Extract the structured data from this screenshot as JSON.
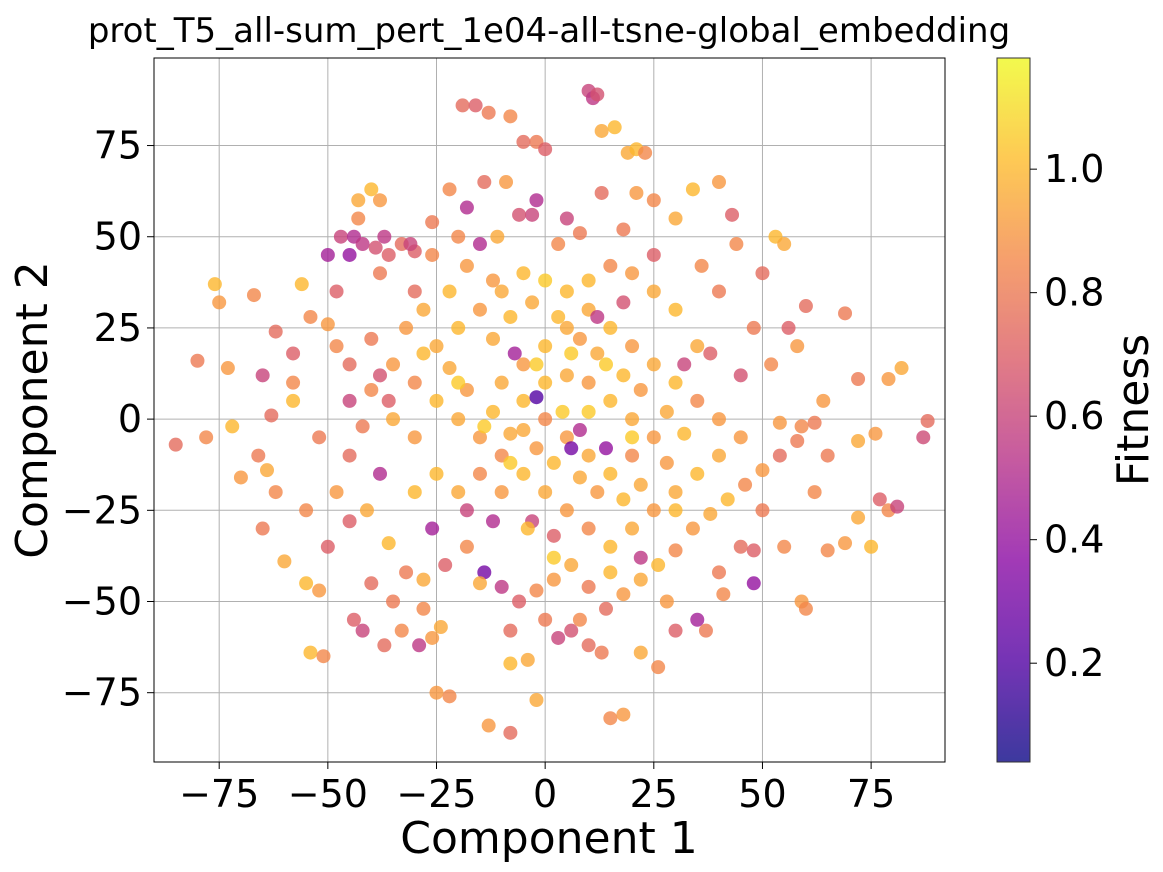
{
  "chart_data": {
    "type": "scatter",
    "title": "prot_T5_all-sum_pert_1e04-all-tsne-global_embedding",
    "xlabel": "Component 1",
    "ylabel": "Component 2",
    "xlim": [
      -90,
      92
    ],
    "ylim": [
      -94,
      99
    ],
    "xticks": [
      -75,
      -50,
      -25,
      0,
      25,
      50,
      75
    ],
    "yticks": [
      -75,
      -50,
      -25,
      0,
      25,
      50,
      75
    ],
    "xtick_labels": [
      "−75",
      "−50",
      "−25",
      "0",
      "25",
      "50",
      "75"
    ],
    "ytick_labels": [
      "−75",
      "−50",
      "−25",
      "0",
      "25",
      "50",
      "75"
    ],
    "grid": true,
    "colorbar": {
      "label": "Fitness",
      "colormap": "plasma",
      "range": [
        0.04,
        1.18
      ],
      "ticks": [
        0.2,
        0.4,
        0.6,
        0.8,
        1.0
      ],
      "tick_labels": [
        "0.2",
        "0.4",
        "0.6",
        "0.8",
        "1.0"
      ]
    },
    "points": [
      [
        88,
        -0.5,
        0.75
      ],
      [
        87,
        -5,
        0.62
      ],
      [
        54,
        -1,
        0.9
      ],
      [
        59,
        -2,
        0.85
      ],
      [
        62,
        -1,
        0.8
      ],
      [
        10,
        90,
        0.6
      ],
      [
        11,
        88,
        0.55
      ],
      [
        12,
        89,
        0.65
      ],
      [
        -19,
        86,
        0.75
      ],
      [
        -16,
        86,
        0.7
      ],
      [
        -13,
        84,
        0.8
      ],
      [
        -8,
        83,
        0.85
      ],
      [
        -2,
        76,
        0.8
      ],
      [
        -5,
        76,
        0.75
      ],
      [
        0,
        74,
        0.7
      ],
      [
        13,
        79,
        0.95
      ],
      [
        16,
        80,
        1.0
      ],
      [
        19,
        73,
        0.95
      ],
      [
        21,
        74,
        1.0
      ],
      [
        23,
        73,
        0.85
      ],
      [
        -43,
        60,
        0.95
      ],
      [
        -40,
        63,
        1.0
      ],
      [
        -38,
        60,
        0.9
      ],
      [
        -43,
        55,
        0.85
      ],
      [
        -47,
        50,
        0.6
      ],
      [
        -44,
        50,
        0.5
      ],
      [
        -42,
        48,
        0.55
      ],
      [
        -39,
        47,
        0.65
      ],
      [
        -36,
        45,
        0.7
      ],
      [
        -33,
        48,
        0.75
      ],
      [
        -45,
        45,
        0.4
      ],
      [
        -50,
        45,
        0.45
      ],
      [
        -37,
        50,
        0.55
      ],
      [
        -30,
        46,
        0.7
      ],
      [
        -26,
        45,
        0.85
      ],
      [
        -76,
        37,
        1.0
      ],
      [
        -75,
        32,
        0.9
      ],
      [
        -67,
        34,
        0.85
      ],
      [
        -62,
        24,
        0.75
      ],
      [
        -58,
        18,
        0.7
      ],
      [
        -80,
        16,
        0.8
      ],
      [
        -73,
        14,
        0.9
      ],
      [
        -65,
        12,
        0.6
      ],
      [
        -63,
        1,
        0.75
      ],
      [
        -58,
        5,
        1.0
      ],
      [
        -72,
        -2,
        1.0
      ],
      [
        -78,
        -5,
        0.85
      ],
      [
        -85,
        -7,
        0.75
      ],
      [
        -70,
        -16,
        0.9
      ],
      [
        -64,
        -14,
        0.95
      ],
      [
        -65,
        -30,
        0.8
      ],
      [
        -60,
        -39,
        0.95
      ],
      [
        -55,
        -45,
        1.0
      ],
      [
        -52,
        -47,
        0.9
      ],
      [
        -54,
        -64,
        1.0
      ],
      [
        -51,
        -65,
        0.85
      ],
      [
        -44,
        -55,
        0.7
      ],
      [
        -42,
        -58,
        0.6
      ],
      [
        -37,
        -62,
        0.75
      ],
      [
        -33,
        -58,
        0.85
      ],
      [
        -29,
        -62,
        0.55
      ],
      [
        -26,
        -60,
        0.9
      ],
      [
        -24,
        -57,
        0.95
      ],
      [
        -25,
        -75,
        0.9
      ],
      [
        -22,
        -76,
        0.85
      ],
      [
        -13,
        -84,
        0.9
      ],
      [
        -8,
        -86,
        0.75
      ],
      [
        -4,
        -66,
        0.95
      ],
      [
        -8,
        -67,
        1.0
      ],
      [
        -2,
        -77,
        0.95
      ],
      [
        3,
        -60,
        0.6
      ],
      [
        6,
        -58,
        0.65
      ],
      [
        10,
        -62,
        0.75
      ],
      [
        13,
        -64,
        0.8
      ],
      [
        15,
        -82,
        0.85
      ],
      [
        18,
        -81,
        0.9
      ],
      [
        22,
        -64,
        0.95
      ],
      [
        26,
        -68,
        0.85
      ],
      [
        30,
        -58,
        0.7
      ],
      [
        35,
        -55,
        0.45
      ],
      [
        37,
        -58,
        0.8
      ],
      [
        41,
        -48,
        0.85
      ],
      [
        48,
        -45,
        0.4
      ],
      [
        48,
        -36,
        0.7
      ],
      [
        55,
        -35,
        0.85
      ],
      [
        59,
        -50,
        0.9
      ],
      [
        60,
        -52,
        0.85
      ],
      [
        65,
        -36,
        0.85
      ],
      [
        69,
        -34,
        0.9
      ],
      [
        72,
        -27,
        0.95
      ],
      [
        75,
        -35,
        1.0
      ],
      [
        79,
        -25,
        0.85
      ],
      [
        77,
        -22,
        0.7
      ],
      [
        81,
        -24,
        0.6
      ],
      [
        72,
        -6,
        0.95
      ],
      [
        76,
        -4,
        0.9
      ],
      [
        72,
        11,
        0.8
      ],
      [
        79,
        11,
        0.9
      ],
      [
        82,
        14,
        0.95
      ],
      [
        69,
        29,
        0.8
      ],
      [
        60,
        31,
        0.75
      ],
      [
        56,
        25,
        0.7
      ],
      [
        53,
        50,
        1.0
      ],
      [
        55,
        48,
        0.95
      ],
      [
        50,
        40,
        0.75
      ],
      [
        44,
        48,
        0.85
      ],
      [
        43,
        56,
        0.7
      ],
      [
        40,
        65,
        0.9
      ],
      [
        34,
        63,
        1.0
      ],
      [
        30,
        55,
        0.95
      ],
      [
        25,
        60,
        0.85
      ],
      [
        21,
        62,
        0.9
      ],
      [
        13,
        62,
        0.75
      ],
      [
        8,
        51,
        0.8
      ],
      [
        3,
        48,
        0.85
      ],
      [
        -3,
        56,
        0.6
      ],
      [
        -2,
        60,
        0.5
      ],
      [
        -6,
        56,
        0.65
      ],
      [
        -11,
        50,
        0.95
      ],
      [
        -9,
        65,
        0.9
      ],
      [
        -14,
        65,
        0.75
      ],
      [
        -22,
        63,
        0.85
      ],
      [
        -18,
        58,
        0.5
      ],
      [
        -26,
        54,
        0.8
      ],
      [
        -31,
        48,
        0.6
      ],
      [
        -56,
        37,
        1.0
      ],
      [
        -50,
        26,
        0.9
      ],
      [
        -48,
        20,
        0.85
      ],
      [
        -45,
        15,
        0.75
      ],
      [
        -40,
        22,
        0.8
      ],
      [
        -38,
        12,
        0.65
      ],
      [
        -36,
        5,
        0.7
      ],
      [
        -42,
        -2,
        0.8
      ],
      [
        -45,
        -10,
        0.75
      ],
      [
        -48,
        -20,
        0.9
      ],
      [
        -41,
        -25,
        0.95
      ],
      [
        -36,
        -34,
        1.0
      ],
      [
        -32,
        -42,
        0.8
      ],
      [
        -28,
        -44,
        0.95
      ],
      [
        -23,
        -40,
        0.7
      ],
      [
        -18,
        -35,
        0.85
      ],
      [
        -14,
        -42,
        0.3
      ],
      [
        -10,
        -46,
        0.55
      ],
      [
        -6,
        -50,
        0.7
      ],
      [
        -2,
        -47,
        0.85
      ],
      [
        2,
        -44,
        0.9
      ],
      [
        6,
        -40,
        0.95
      ],
      [
        10,
        -46,
        0.8
      ],
      [
        14,
        -52,
        0.75
      ],
      [
        18,
        -48,
        0.9
      ],
      [
        22,
        -44,
        0.95
      ],
      [
        26,
        -40,
        1.0
      ],
      [
        30,
        -36,
        0.85
      ],
      [
        34,
        -30,
        0.9
      ],
      [
        38,
        -26,
        0.95
      ],
      [
        42,
        -22,
        1.0
      ],
      [
        46,
        -18,
        0.85
      ],
      [
        50,
        -14,
        0.9
      ],
      [
        54,
        -10,
        0.75
      ],
      [
        58,
        -6,
        0.8
      ],
      [
        45,
        -5,
        0.9
      ],
      [
        40,
        -10,
        0.95
      ],
      [
        35,
        -15,
        1.0
      ],
      [
        30,
        -20,
        0.95
      ],
      [
        25,
        -25,
        0.9
      ],
      [
        20,
        -30,
        0.95
      ],
      [
        15,
        -35,
        1.0
      ],
      [
        10,
        -30,
        0.85
      ],
      [
        5,
        -25,
        0.9
      ],
      [
        0,
        -20,
        0.95
      ],
      [
        -5,
        -15,
        1.0
      ],
      [
        -10,
        -10,
        0.85
      ],
      [
        -15,
        -5,
        0.9
      ],
      [
        -20,
        0,
        0.95
      ],
      [
        -25,
        5,
        1.0
      ],
      [
        -30,
        10,
        0.85
      ],
      [
        -35,
        15,
        0.9
      ],
      [
        -25,
        20,
        0.95
      ],
      [
        -20,
        25,
        1.0
      ],
      [
        -15,
        30,
        0.9
      ],
      [
        -10,
        35,
        0.95
      ],
      [
        -5,
        40,
        1.0
      ],
      [
        0,
        38,
        1.05
      ],
      [
        5,
        35,
        1.0
      ],
      [
        10,
        30,
        0.95
      ],
      [
        15,
        25,
        1.0
      ],
      [
        20,
        20,
        0.9
      ],
      [
        25,
        15,
        0.95
      ],
      [
        30,
        10,
        1.0
      ],
      [
        35,
        5,
        0.85
      ],
      [
        40,
        0,
        0.9
      ],
      [
        35,
        20,
        0.95
      ],
      [
        30,
        30,
        1.0
      ],
      [
        25,
        35,
        0.95
      ],
      [
        20,
        40,
        0.9
      ],
      [
        15,
        42,
        0.85
      ],
      [
        10,
        38,
        1.0
      ],
      [
        5,
        25,
        0.95
      ],
      [
        0,
        20,
        1.0
      ],
      [
        -5,
        15,
        0.9
      ],
      [
        -10,
        10,
        0.95
      ],
      [
        -5,
        5,
        1.0
      ],
      [
        0,
        0,
        0.85
      ],
      [
        5,
        -5,
        0.9
      ],
      [
        10,
        -10,
        0.95
      ],
      [
        15,
        -15,
        1.0
      ],
      [
        20,
        -10,
        0.85
      ],
      [
        25,
        -5,
        0.9
      ],
      [
        20,
        0,
        0.95
      ],
      [
        15,
        5,
        1.0
      ],
      [
        10,
        10,
        0.9
      ],
      [
        5,
        12,
        0.95
      ],
      [
        0,
        10,
        1.0
      ],
      [
        -5,
        -3,
        0.95
      ],
      [
        -10,
        -20,
        0.9
      ],
      [
        -15,
        -15,
        0.85
      ],
      [
        -20,
        -20,
        0.95
      ],
      [
        -25,
        -15,
        1.0
      ],
      [
        -30,
        -5,
        0.9
      ],
      [
        -35,
        0,
        0.95
      ],
      [
        -40,
        8,
        0.85
      ],
      [
        -32,
        25,
        0.9
      ],
      [
        -28,
        30,
        0.95
      ],
      [
        -22,
        35,
        1.0
      ],
      [
        -18,
        42,
        0.9
      ],
      [
        -12,
        22,
        0.95
      ],
      [
        -8,
        28,
        1.0
      ],
      [
        -3,
        32,
        0.95
      ],
      [
        3,
        28,
        1.0
      ],
      [
        8,
        22,
        0.9
      ],
      [
        12,
        18,
        0.95
      ],
      [
        18,
        12,
        1.0
      ],
      [
        22,
        8,
        0.9
      ],
      [
        28,
        2,
        0.95
      ],
      [
        32,
        -4,
        1.0
      ],
      [
        28,
        -12,
        0.9
      ],
      [
        22,
        -18,
        0.95
      ],
      [
        18,
        -22,
        1.0
      ],
      [
        12,
        -20,
        0.9
      ],
      [
        8,
        -16,
        0.95
      ],
      [
        2,
        -12,
        1.0
      ],
      [
        -2,
        -8,
        0.9
      ],
      [
        -8,
        -4,
        0.95
      ],
      [
        -12,
        2,
        1.0
      ],
      [
        -18,
        8,
        0.9
      ],
      [
        -22,
        14,
        0.95
      ],
      [
        -28,
        18,
        1.0
      ],
      [
        -3,
        -28,
        0.6
      ],
      [
        2,
        -32,
        0.7
      ],
      [
        6,
        -8,
        0.3
      ],
      [
        -2,
        6,
        0.2
      ],
      [
        8,
        -3,
        0.5
      ],
      [
        14,
        -8,
        0.4
      ],
      [
        -7,
        18,
        0.45
      ],
      [
        12,
        28,
        0.55
      ],
      [
        18,
        32,
        0.65
      ],
      [
        -12,
        -28,
        0.5
      ],
      [
        -18,
        -25,
        0.6
      ],
      [
        22,
        -38,
        0.55
      ],
      [
        -26,
        -30,
        0.45
      ],
      [
        32,
        15,
        0.6
      ],
      [
        38,
        18,
        0.7
      ],
      [
        -38,
        -15,
        0.5
      ],
      [
        45,
        12,
        0.65
      ],
      [
        -45,
        5,
        0.6
      ],
      [
        5,
        55,
        0.6
      ],
      [
        -15,
        48,
        0.5
      ],
      [
        25,
        45,
        0.7
      ],
      [
        40,
        35,
        0.8
      ],
      [
        -30,
        35,
        0.75
      ],
      [
        -48,
        35,
        0.7
      ],
      [
        48,
        25,
        0.8
      ],
      [
        52,
        15,
        0.85
      ],
      [
        -52,
        -5,
        0.8
      ],
      [
        -55,
        -25,
        0.85
      ],
      [
        -50,
        -35,
        0.7
      ],
      [
        45,
        -35,
        0.75
      ],
      [
        40,
        -42,
        0.8
      ],
      [
        -40,
        -45,
        0.75
      ],
      [
        -35,
        -50,
        0.8
      ],
      [
        62,
        -20,
        0.85
      ],
      [
        65,
        -10,
        0.8
      ],
      [
        -62,
        -20,
        0.85
      ],
      [
        -66,
        -10,
        0.8
      ],
      [
        64,
        5,
        0.9
      ],
      [
        -58,
        10,
        0.85
      ],
      [
        58,
        20,
        0.9
      ],
      [
        -54,
        28,
        0.85
      ],
      [
        28,
        -50,
        0.9
      ],
      [
        -28,
        -52,
        0.85
      ],
      [
        0,
        -55,
        0.8
      ],
      [
        -8,
        -58,
        0.75
      ],
      [
        8,
        -55,
        0.85
      ],
      [
        -45,
        -28,
        0.7
      ],
      [
        50,
        -25,
        0.8
      ],
      [
        -38,
        40,
        0.8
      ],
      [
        36,
        42,
        0.85
      ],
      [
        -20,
        50,
        0.85
      ],
      [
        18,
        52,
        0.8
      ],
      [
        -12,
        38,
        0.9
      ],
      [
        30,
        -25,
        1.0
      ],
      [
        -30,
        -20,
        1.0
      ],
      [
        15,
        -42,
        1.0
      ],
      [
        -15,
        -45,
        0.95
      ],
      [
        2,
        -38,
        1.05
      ],
      [
        -4,
        -30,
        1.0
      ],
      [
        4,
        2,
        1.05
      ],
      [
        -2,
        15,
        1.05
      ],
      [
        6,
        18,
        1.05
      ],
      [
        10,
        2,
        1.05
      ],
      [
        -8,
        -12,
        1.05
      ],
      [
        20,
        -5,
        1.05
      ],
      [
        -20,
        10,
        1.05
      ],
      [
        14,
        15,
        1.05
      ],
      [
        -14,
        -2,
        1.05
      ]
    ]
  }
}
